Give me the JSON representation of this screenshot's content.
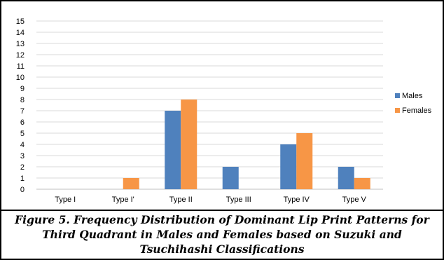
{
  "chart_data": {
    "type": "bar",
    "categories": [
      "Type I",
      "Type I'",
      "Type II",
      "Type III",
      "Type IV",
      "Type V"
    ],
    "series": [
      {
        "name": "Males",
        "color": "#4F81BD",
        "values": [
          0,
          0,
          7,
          2,
          4,
          2
        ]
      },
      {
        "name": "Females",
        "color": "#F79646",
        "values": [
          0,
          1,
          8,
          0,
          5,
          1
        ]
      }
    ],
    "ylim": [
      0,
      15
    ],
    "yticks": [
      0,
      1,
      2,
      3,
      4,
      5,
      6,
      7,
      8,
      9,
      10,
      11,
      12,
      13,
      14,
      15
    ],
    "grid": true,
    "legend": "right"
  },
  "caption": {
    "lines": [
      "Figure 5. Frequency Distribution of Dominant Lip Print Patterns for",
      "Third Quadrant in Males and Females based on Suzuki and",
      "Tsuchihashi Classifications"
    ]
  }
}
